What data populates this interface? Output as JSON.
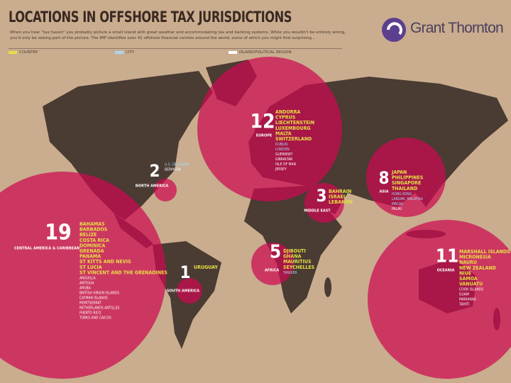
{
  "header": {
    "title": "LOCATIONS IN OFFSHORE TAX JURISDICTIONS",
    "intro": "When you hear \"tax haven\" you probably picture a small island with great weather and accommodating tax and banking systems. While you wouldn't be entirely wrong, you'd only be seeing part of the picture. The IMF identifies over 41 offshore financial centres around the world, some of which you might find surprising..."
  },
  "logo": "Grant Thornton",
  "legend": [
    {
      "label": "COUNTRY",
      "color": "#e6df45"
    },
    {
      "label": "CITY",
      "color": "#a9d8f2"
    },
    {
      "label": "ISLAND/POLITICAL REGION",
      "color": "#ffffff"
    }
  ],
  "regions": [
    {
      "count": "12",
      "name": "EUROPE",
      "lists": [
        [
          "ANDORRA",
          "CYPRUS",
          "LIECHTENSTEIN",
          "LUXEMBOURG",
          "MALTA",
          "SWITZERLAND"
        ],
        [
          "DUBLIN",
          "LONDON"
        ],
        [
          "GUERNSEY",
          "GIBRALTAR",
          "ISLE OF MAN",
          "JERSEY"
        ]
      ]
    },
    {
      "count": "2",
      "name": "NORTH AMERICA",
      "lists": [
        [],
        [
          "U.S. DELAWARE"
        ],
        [
          "BERMUDA"
        ]
      ]
    },
    {
      "count": "19",
      "name": "CENTRAL AMERICA & CARIBBEAN",
      "lists": [
        [
          "BAHAMAS",
          "BARBADOS",
          "BELIZE",
          "COSTA RICA",
          "DOMINICA",
          "GRENADA",
          "PANAMA",
          "ST KITTS AND NEVIS",
          "ST LUCIA",
          "ST VINCENT AND THE GRENADINES"
        ],
        [],
        [
          "ANGUILLA",
          "ANTIGUA",
          "ARUBA",
          "BRITISH VIRGIN ISLANDS",
          "CAYMAN ISLANDS",
          "MONTSERRAT",
          "NETHERLANDS ANTILLES",
          "PUERTO RICO",
          "TURKS AND CAICOS"
        ]
      ]
    },
    {
      "count": "1",
      "name": "SOUTH AMERICA",
      "lists": [
        [
          "URUGUAY"
        ],
        [],
        []
      ]
    },
    {
      "count": "3",
      "name": "MIDDLE EAST",
      "lists": [
        [
          "BAHRAIN",
          "ISRAEL",
          "LEBANON"
        ],
        [],
        []
      ]
    },
    {
      "count": "5",
      "name": "AFRICA",
      "lists": [
        [
          "DJIBOUTI",
          "GHANA",
          "MAURITIUS",
          "SEYCHELLES"
        ],
        [
          "TANGIER"
        ],
        []
      ]
    },
    {
      "count": "8",
      "name": "ASIA",
      "lists": [
        [
          "JAPAN",
          "PHILIPPINES",
          "SINGAPORE",
          "THAILAND"
        ],
        [
          "HONG KONG",
          "LABUAN, MALAYSIA",
          "MACAU"
        ],
        [
          "PALAU"
        ]
      ]
    },
    {
      "count": "11",
      "name": "OCEANIA",
      "lists": [
        [
          "MARSHALL ISLANDS",
          "MICRONESIA",
          "NAURU",
          "NEW ZEALAND",
          "NIUE",
          "SAMOA",
          "VANUATU"
        ],
        [],
        [
          "COOK ISLANDS",
          "GUAM",
          "MARIANAS",
          "TAHITI"
        ]
      ]
    }
  ]
}
